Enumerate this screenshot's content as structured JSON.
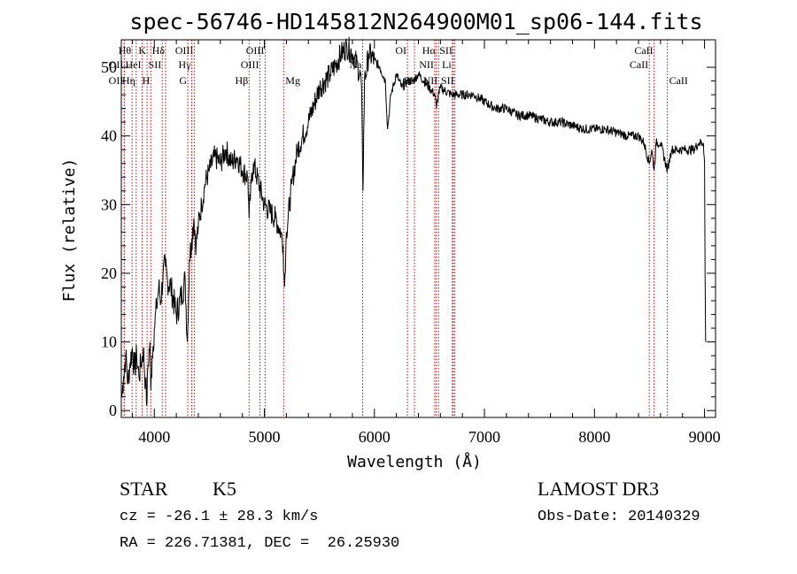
{
  "chart_data": {
    "type": "line",
    "title": "spec-56746-HD145812N264900M01_sp06-144.fits",
    "xlabel": "Wavelength (Å)",
    "ylabel": "Flux (relative)",
    "xlim": [
      3700,
      9100
    ],
    "ylim": [
      -1,
      54
    ],
    "xticks": [
      4000,
      5000,
      6000,
      7000,
      8000,
      9000
    ],
    "yticks": [
      0,
      10,
      20,
      30,
      40,
      50
    ],
    "series": [
      {
        "name": "flux",
        "x": [
          3705,
          3720,
          3740,
          3760,
          3780,
          3800,
          3820,
          3840,
          3860,
          3880,
          3900,
          3920,
          3933,
          3940,
          3960,
          3968,
          3980,
          4000,
          4020,
          4040,
          4060,
          4080,
          4100,
          4120,
          4150,
          4200,
          4250,
          4280,
          4300,
          4320,
          4340,
          4360,
          4380,
          4400,
          4430,
          4460,
          4500,
          4550,
          4600,
          4650,
          4700,
          4750,
          4800,
          4850,
          4861,
          4880,
          4900,
          4950,
          5000,
          5050,
          5100,
          5150,
          5170,
          5183,
          5200,
          5250,
          5300,
          5400,
          5500,
          5600,
          5700,
          5750,
          5800,
          5850,
          5880,
          5890,
          5896,
          5910,
          5950,
          6000,
          6050,
          6100,
          6120,
          6150,
          6200,
          6250,
          6300,
          6350,
          6400,
          6450,
          6500,
          6550,
          6563,
          6580,
          6600,
          6700,
          6800,
          6900,
          7000,
          7100,
          7200,
          7300,
          7400,
          7500,
          7600,
          7700,
          7800,
          7900,
          8000,
          8100,
          8200,
          8300,
          8400,
          8450,
          8498,
          8520,
          8542,
          8560,
          8600,
          8662,
          8700,
          8800,
          8900,
          8950,
          8990,
          9000,
          9005,
          9010
        ],
        "y": [
          2,
          5,
          8,
          4,
          7,
          9,
          6,
          8,
          5,
          7,
          9,
          4,
          1,
          6,
          10,
          3,
          8,
          12,
          15,
          18,
          16,
          20,
          21,
          19,
          18,
          14,
          17,
          19,
          10,
          22,
          25,
          28,
          24,
          27,
          30,
          33,
          35,
          37,
          36,
          38,
          36,
          37,
          35,
          34,
          28,
          33,
          36,
          33,
          30,
          29,
          28,
          26,
          24,
          18,
          26,
          33,
          38,
          42,
          47,
          49,
          52,
          53,
          52,
          50,
          48,
          40,
          32,
          48,
          52,
          51,
          50,
          48,
          41,
          46,
          49,
          47,
          48,
          48,
          49,
          48,
          47,
          46,
          44,
          46,
          47,
          46,
          46,
          46,
          45,
          44,
          44,
          43,
          43,
          42.5,
          42,
          42,
          41.5,
          41,
          41,
          41,
          40.5,
          40,
          40,
          39,
          36,
          38,
          35,
          39,
          39,
          35,
          38,
          38,
          38,
          39,
          39,
          36,
          20,
          10
        ]
      }
    ],
    "line_markers": [
      {
        "name": "Hθ",
        "wl": 3798,
        "row": 0,
        "side": "left"
      },
      {
        "name": "OII",
        "wl": 3727,
        "row": 1,
        "side": "left"
      },
      {
        "name": "OII",
        "wl": 3727,
        "row": 2,
        "side": "left"
      },
      {
        "name": "HeI",
        "wl": 3889,
        "row": 1,
        "side": "left"
      },
      {
        "name": "Hη",
        "wl": 3835,
        "row": 2,
        "side": "left"
      },
      {
        "name": "K",
        "wl": 3934,
        "row": 0,
        "side": "left"
      },
      {
        "name": "SII",
        "wl": 4072,
        "row": 1,
        "side": "left"
      },
      {
        "name": "H",
        "wl": 3968,
        "row": 2,
        "side": "left"
      },
      {
        "name": "Hδ",
        "wl": 4102,
        "row": 0,
        "side": "left"
      },
      {
        "name": "OIII",
        "wl": 4363,
        "row": 0,
        "side": "left"
      },
      {
        "name": "Hγ",
        "wl": 4340,
        "row": 1,
        "side": "left"
      },
      {
        "name": "G",
        "wl": 4304,
        "row": 2,
        "side": "left"
      },
      {
        "name": "Hβ",
        "wl": 4861,
        "row": 2,
        "side": "left"
      },
      {
        "name": "OIII",
        "wl": 5007,
        "row": 0,
        "side": "left"
      },
      {
        "name": "OIII",
        "wl": 4959,
        "row": 1,
        "side": "left"
      },
      {
        "name": "Mg",
        "wl": 5175,
        "row": 2,
        "side": "right"
      },
      {
        "name": "Na",
        "wl": 5893,
        "row": 1,
        "side": "left"
      },
      {
        "name": "OI",
        "wl": 6300,
        "row": 0,
        "side": "left"
      },
      {
        "name": "OI",
        "wl": 6364,
        "row": 2,
        "side": "left"
      },
      {
        "name": "Hα",
        "wl": 6563,
        "row": 0,
        "side": "left"
      },
      {
        "name": "SII",
        "wl": 6717,
        "row": 0,
        "side": "left"
      },
      {
        "name": "NII",
        "wl": 6548,
        "row": 1,
        "side": "left"
      },
      {
        "name": "Li",
        "wl": 6708,
        "row": 1,
        "side": "left"
      },
      {
        "name": "NII",
        "wl": 6583,
        "row": 2,
        "side": "left"
      },
      {
        "name": "SII",
        "wl": 6731,
        "row": 2,
        "side": "left"
      },
      {
        "name": "CaII",
        "wl": 8542,
        "row": 0,
        "side": "left"
      },
      {
        "name": "CaII",
        "wl": 8498,
        "row": 1,
        "side": "left"
      },
      {
        "name": "CaII",
        "wl": 8662,
        "row": 2,
        "side": "right"
      }
    ]
  },
  "info": {
    "class": "STAR",
    "subclass": "K5",
    "survey": "LAMOST DR3",
    "cz": "cz = -26.1 ± 28.3 km/s",
    "obs_date": "Obs-Date: 20140329",
    "coords": "RA = 226.71381, DEC =  26.25930"
  },
  "colors": {
    "line": "#000000",
    "marker": "#cc0000",
    "background": "#ffffff"
  }
}
